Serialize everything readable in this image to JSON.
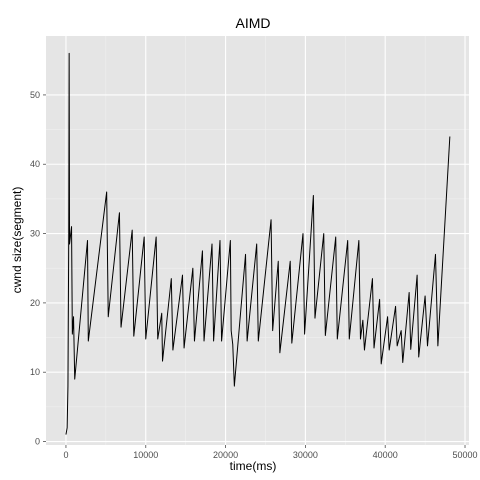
{
  "chart_data": {
    "type": "line",
    "title": "AIMD",
    "xlabel": "time(ms)",
    "ylabel": "cwnd size(segment)",
    "xlim": [
      -2500,
      50500
    ],
    "ylim": [
      -0.5,
      58.5
    ],
    "x_ticks": [
      0,
      10000,
      20000,
      30000,
      40000,
      50000
    ],
    "x_tick_labels": [
      "0",
      "10000",
      "20000",
      "30000",
      "40000",
      "50000"
    ],
    "y_ticks": [
      0,
      10,
      20,
      30,
      40,
      50
    ],
    "y_tick_labels": [
      "0",
      "10",
      "20",
      "30",
      "40",
      "50"
    ],
    "grid": true,
    "background": "#e5e5e5",
    "line_color": "#000000",
    "series": [
      {
        "points": [
          [
            0,
            1
          ],
          [
            150,
            2
          ],
          [
            250,
            8
          ],
          [
            350,
            30
          ],
          [
            400,
            56
          ],
          [
            450,
            28.5
          ],
          [
            700,
            31
          ],
          [
            800,
            15.5
          ],
          [
            950,
            18
          ],
          [
            1100,
            9
          ],
          [
            2700,
            29
          ],
          [
            2800,
            14.5
          ],
          [
            5100,
            36
          ],
          [
            5300,
            18
          ],
          [
            6700,
            33
          ],
          [
            6900,
            16.5
          ],
          [
            8300,
            30.5
          ],
          [
            8500,
            15.2
          ],
          [
            9800,
            29.5
          ],
          [
            10000,
            14.8
          ],
          [
            11300,
            29.5
          ],
          [
            11500,
            14.8
          ],
          [
            12000,
            18.5
          ],
          [
            12100,
            11.6
          ],
          [
            13200,
            23.5
          ],
          [
            13400,
            13.2
          ],
          [
            14600,
            24
          ],
          [
            14800,
            13.5
          ],
          [
            15900,
            25
          ],
          [
            16100,
            14.5
          ],
          [
            17100,
            27.5
          ],
          [
            17300,
            14.5
          ],
          [
            18300,
            28.5
          ],
          [
            18500,
            14.5
          ],
          [
            19300,
            29
          ],
          [
            19500,
            14.5
          ],
          [
            20600,
            29
          ],
          [
            20700,
            16
          ],
          [
            20900,
            14
          ],
          [
            21100,
            8
          ],
          [
            22500,
            27
          ],
          [
            22700,
            14.5
          ],
          [
            23900,
            28.5
          ],
          [
            24100,
            14.5
          ],
          [
            25700,
            32
          ],
          [
            25900,
            16
          ],
          [
            26600,
            26
          ],
          [
            26800,
            12.8
          ],
          [
            28100,
            26
          ],
          [
            28300,
            14.2
          ],
          [
            29700,
            30
          ],
          [
            29900,
            15.5
          ],
          [
            31000,
            35.5
          ],
          [
            31200,
            17.8
          ],
          [
            32300,
            30
          ],
          [
            32500,
            15.3
          ],
          [
            33800,
            29.5
          ],
          [
            34000,
            14.8
          ],
          [
            35300,
            29
          ],
          [
            35500,
            14.8
          ],
          [
            36700,
            29
          ],
          [
            36900,
            14.8
          ],
          [
            37200,
            17.5
          ],
          [
            37400,
            13.2
          ],
          [
            38400,
            23.5
          ],
          [
            38600,
            13.5
          ],
          [
            39300,
            20.5
          ],
          [
            39500,
            11.2
          ],
          [
            40300,
            18
          ],
          [
            40500,
            13.2
          ],
          [
            41300,
            19.5
          ],
          [
            41500,
            13.8
          ],
          [
            42000,
            16
          ],
          [
            42200,
            11.4
          ],
          [
            43000,
            21.5
          ],
          [
            43200,
            13.3
          ],
          [
            44000,
            24
          ],
          [
            44200,
            12.2
          ],
          [
            45000,
            21
          ],
          [
            45300,
            13.8
          ],
          [
            46300,
            27
          ],
          [
            46600,
            13.8
          ],
          [
            48100,
            44
          ]
        ]
      }
    ]
  }
}
